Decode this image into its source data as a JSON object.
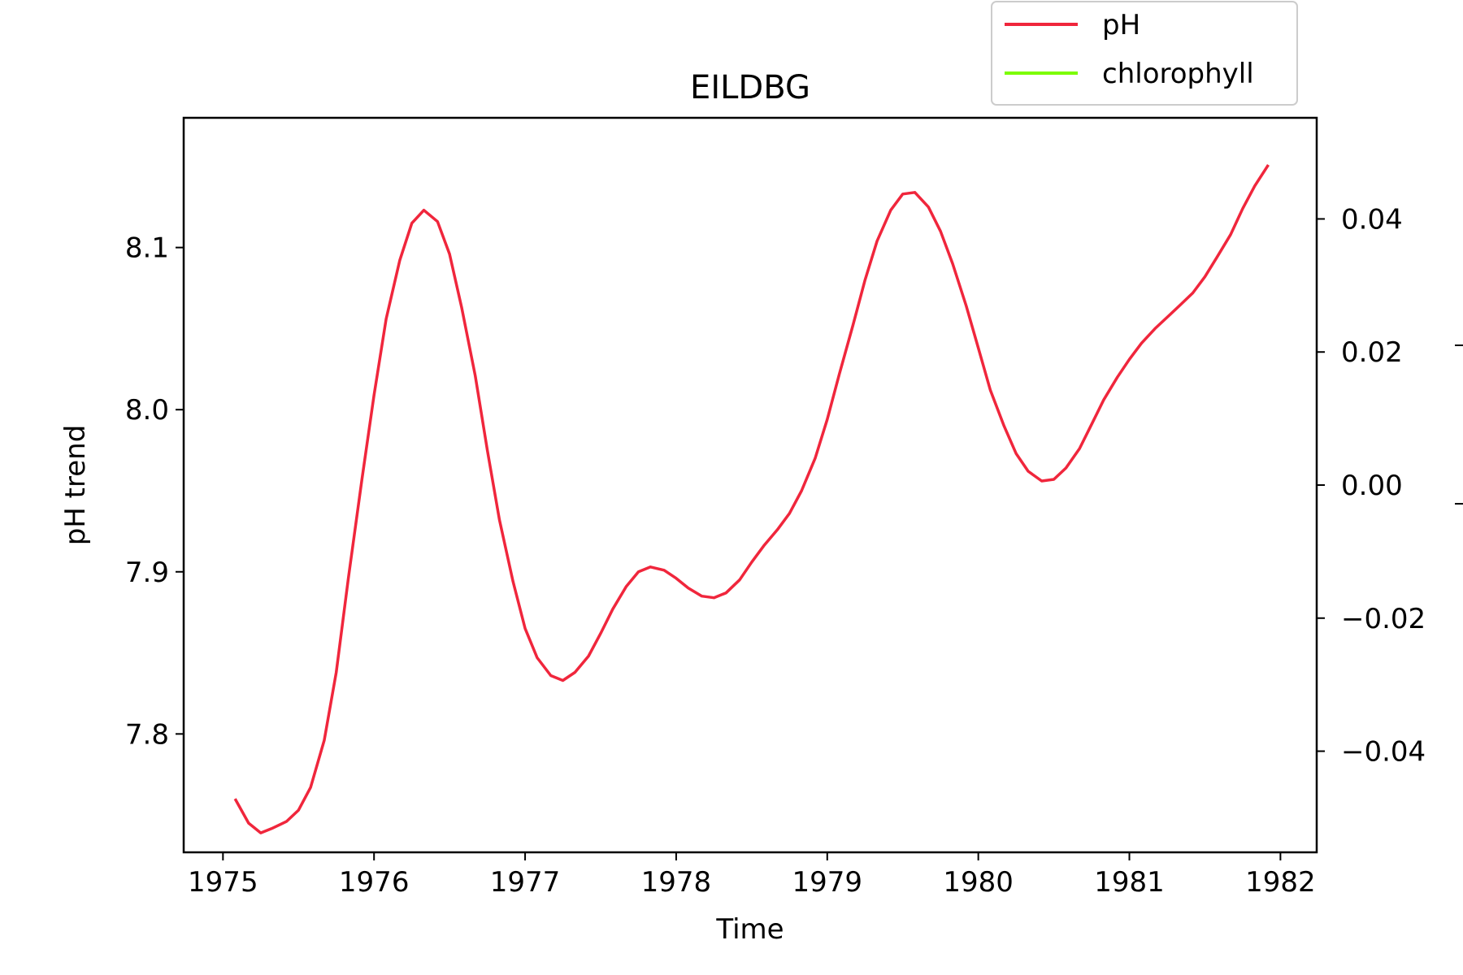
{
  "chart_data": {
    "type": "line",
    "title": "EILDBG",
    "xlabel": "Time",
    "ylabel": "pH trend",
    "y2label": "",
    "xlim": [
      1974.74,
      1982.24
    ],
    "ylim": [
      7.727,
      8.18
    ],
    "y2lim": [
      -0.0552,
      0.0552
    ],
    "x_ticks": [
      1975,
      1976,
      1977,
      1978,
      1979,
      1980,
      1981,
      1982
    ],
    "y_ticks": [
      7.8,
      7.9,
      8.0,
      8.1
    ],
    "y2_ticks": [
      -0.04,
      -0.02,
      0.0,
      0.02,
      0.04
    ],
    "y2_tick_labels": [
      "−0.04",
      "−0.02",
      "0.00",
      "0.02",
      "0.04"
    ],
    "grid": false,
    "legend_position": "upper-right, above plot",
    "series": [
      {
        "name": "pH",
        "axis": "left",
        "color": "#f0263c",
        "x": [
          1975.08,
          1975.17,
          1975.25,
          1975.33,
          1975.42,
          1975.5,
          1975.58,
          1975.67,
          1975.75,
          1975.83,
          1975.92,
          1976.0,
          1976.08,
          1976.17,
          1976.25,
          1976.33,
          1976.42,
          1976.5,
          1976.58,
          1976.67,
          1976.75,
          1976.83,
          1976.92,
          1977.0,
          1977.08,
          1977.17,
          1977.25,
          1977.33,
          1977.42,
          1977.5,
          1977.58,
          1977.67,
          1977.75,
          1977.83,
          1977.92,
          1978.0,
          1978.08,
          1978.17,
          1978.25,
          1978.33,
          1978.42,
          1978.5,
          1978.58,
          1978.67,
          1978.75,
          1978.83,
          1978.92,
          1979.0,
          1979.08,
          1979.17,
          1979.25,
          1979.33,
          1979.42,
          1979.5,
          1979.58,
          1979.67,
          1979.75,
          1979.83,
          1979.92,
          1980.0,
          1980.08,
          1980.17,
          1980.25,
          1980.33,
          1980.42,
          1980.5,
          1980.58,
          1980.67,
          1980.75,
          1980.83,
          1980.92,
          1981.0,
          1981.08,
          1981.17,
          1981.25,
          1981.33,
          1981.42,
          1981.5,
          1981.58,
          1981.67,
          1981.75,
          1981.83,
          1981.92
        ],
        "values": [
          7.76,
          7.745,
          7.739,
          7.742,
          7.746,
          7.753,
          7.767,
          7.796,
          7.838,
          7.896,
          7.957,
          8.009,
          8.056,
          8.092,
          8.115,
          8.123,
          8.116,
          8.096,
          8.063,
          8.021,
          7.975,
          7.932,
          7.894,
          7.865,
          7.847,
          7.836,
          7.833,
          7.838,
          7.848,
          7.862,
          7.877,
          7.891,
          7.9,
          7.903,
          7.901,
          7.896,
          7.89,
          7.885,
          7.884,
          7.887,
          7.895,
          7.906,
          7.916,
          7.926,
          7.936,
          7.95,
          7.97,
          7.994,
          8.022,
          8.052,
          8.08,
          8.104,
          8.123,
          8.133,
          8.134,
          8.125,
          8.11,
          8.09,
          8.064,
          8.038,
          8.012,
          7.99,
          7.973,
          7.962,
          7.956,
          7.957,
          7.964,
          7.976,
          7.991,
          8.006,
          8.02,
          8.031,
          8.041,
          8.05,
          8.057,
          8.064,
          8.072,
          8.082,
          8.094,
          8.108,
          8.124,
          8.138,
          8.151
        ]
      },
      {
        "name": "chlorophyll",
        "axis": "right",
        "color": "#7cfc00",
        "x": [],
        "values": []
      }
    ]
  }
}
